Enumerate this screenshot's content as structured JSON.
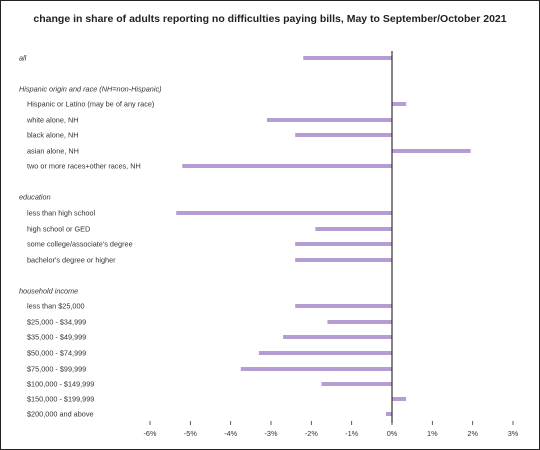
{
  "chart_data": {
    "type": "bar",
    "orientation": "horizontal",
    "title": "change in share of adults reporting no difficulties paying bills, May to September/October 2021",
    "bar_color": "#b39dd3",
    "axis_color": "#333333",
    "xlim": [
      -6,
      3
    ],
    "ticks": [
      -6,
      -5,
      -4,
      -3,
      -2,
      -1,
      0,
      1,
      2,
      3
    ],
    "tick_labels": [
      "-6%",
      "-5%",
      "-4%",
      "-3%",
      "-2%",
      "-1%",
      "0%",
      "1%",
      "2%",
      "3%"
    ],
    "grid": false,
    "rows": [
      {
        "type": "group",
        "label": "all",
        "value": -2.2
      },
      {
        "type": "group",
        "label": "Hispanic origin and race (NH=non-Hispanic)"
      },
      {
        "type": "bar",
        "label": "Hispanic or Latino (may be of any race)",
        "value": 0.35
      },
      {
        "type": "bar",
        "label": "white alone, NH",
        "value": -3.1
      },
      {
        "type": "bar",
        "label": "black alone, NH",
        "value": -2.4
      },
      {
        "type": "bar",
        "label": "asian alone, NH",
        "value": 1.95
      },
      {
        "type": "bar",
        "label": "two or more races+other races, NH",
        "value": -5.2
      },
      {
        "type": "group",
        "label": "education"
      },
      {
        "type": "bar",
        "label": "less than high school",
        "value": -5.35
      },
      {
        "type": "bar",
        "label": "high school or GED",
        "value": -1.9
      },
      {
        "type": "bar",
        "label": "some college/associate's degree",
        "value": -2.4
      },
      {
        "type": "bar",
        "label": "bachelor's degree or higher",
        "value": -2.4
      },
      {
        "type": "group",
        "label": "household income"
      },
      {
        "type": "bar",
        "label": "less than $25,000",
        "value": -2.4
      },
      {
        "type": "bar",
        "label": "$25,000 - $34,999",
        "value": -1.6
      },
      {
        "type": "bar",
        "label": "$35,000 - $49,999",
        "value": -2.7
      },
      {
        "type": "bar",
        "label": "$50,000 - $74,999",
        "value": -3.3
      },
      {
        "type": "bar",
        "label": "$75,000 - $99,999",
        "value": -3.75
      },
      {
        "type": "bar",
        "label": "$100,000 - $149,999",
        "value": -1.75
      },
      {
        "type": "bar",
        "label": "$150,000 - $199,999",
        "value": 0.35
      },
      {
        "type": "bar",
        "label": "$200,000 and above",
        "value": -0.15
      }
    ]
  }
}
